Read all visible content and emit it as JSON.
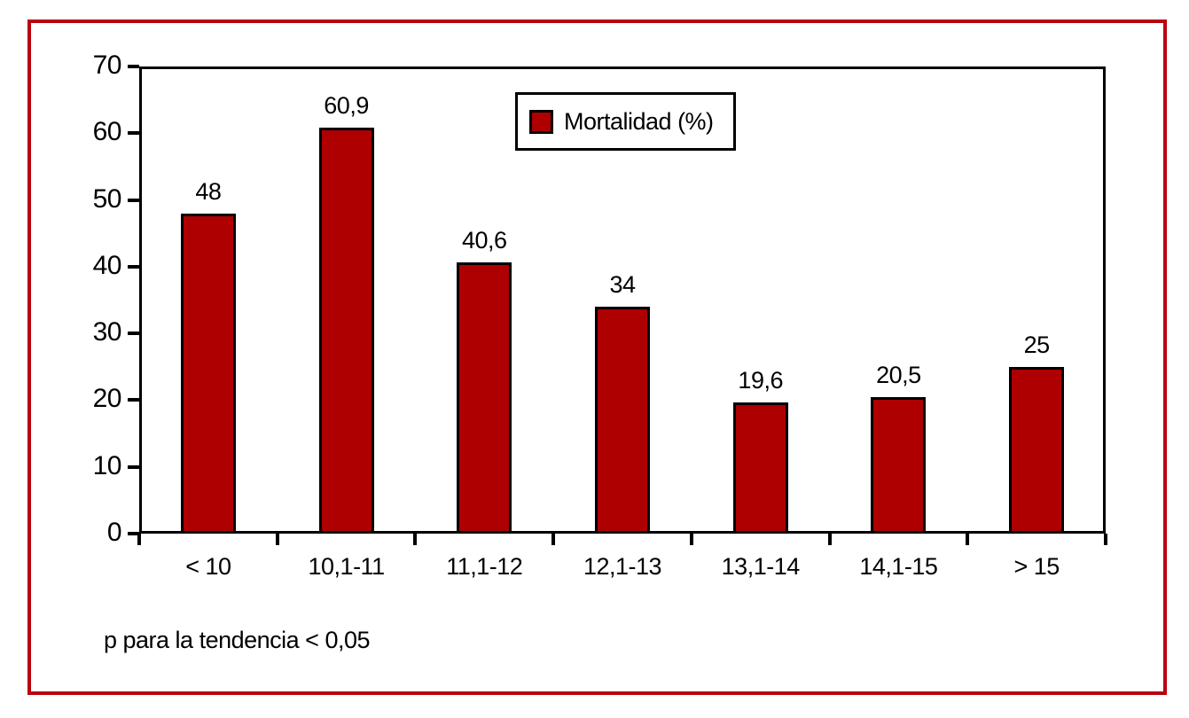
{
  "frame_color": "#ba0011",
  "footnote": "p para la tendencia < 0,05",
  "chart_data": {
    "type": "bar",
    "title": "",
    "xlabel": "",
    "ylabel": "",
    "categories": [
      "< 10",
      "10,1-11",
      "11,1-12",
      "12,1-13",
      "13,1-14",
      "14,1-15",
      "> 15"
    ],
    "values": [
      48,
      60.9,
      40.6,
      34,
      19.6,
      20.5,
      25
    ],
    "value_labels": [
      "48",
      "60,9",
      "40,6",
      "34",
      "19,6",
      "20,5",
      "25"
    ],
    "ylim": [
      0,
      70
    ],
    "ytick_step": 10,
    "ytick_labels": [
      "0",
      "10",
      "20",
      "30",
      "40",
      "50",
      "60",
      "70"
    ],
    "grid": false,
    "bar_color": "#ae0000",
    "bar_border_color": "#000000",
    "legend": {
      "label": "Mortalidad (%)",
      "swatch_color": "#ae0000",
      "position": "top-center"
    }
  }
}
